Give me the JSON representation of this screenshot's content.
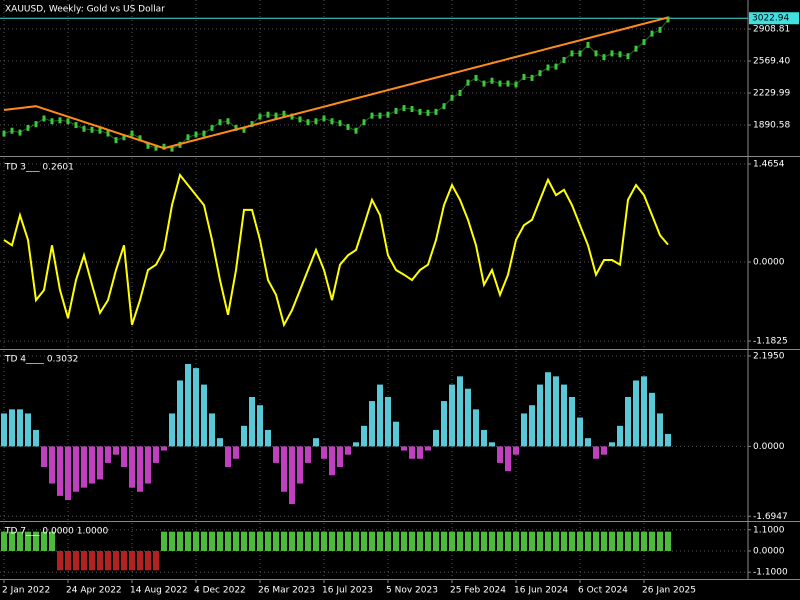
{
  "chart_data": [
    {
      "type": "line",
      "title": "XAUUSD, Weekly:  Gold vs US Dollar",
      "ylim": [
        1572.4,
        3216.4
      ],
      "yticks": [
        2908.81,
        {
          "value": 2569.4,
          "label": "2569.40"
        },
        2229.99,
        1890.58
      ],
      "grid": true,
      "last_price": 3022.94,
      "last_price_color": "#40e0e0",
      "series": [
        {
          "color": "#3cc83c",
          "marker": true,
          "values": [
            1800,
            1830,
            1810,
            1860,
            1900,
            1960,
            1930,
            1940,
            1930,
            1890,
            1850,
            1840,
            1830,
            1800,
            1730,
            1760,
            1800,
            1750,
            1670,
            1650,
            1660,
            1640,
            1680,
            1760,
            1790,
            1800,
            1860,
            1920,
            1930,
            1860,
            1840,
            1900,
            1980,
            2000,
            1990,
            2010,
            1980,
            1950,
            1920,
            1930,
            1960,
            1930,
            1910,
            1870,
            1830,
            1920,
            1990,
            1990,
            2000,
            2040,
            2070,
            2060,
            2030,
            2020,
            2030,
            2090,
            2180,
            2230,
            2340,
            2390,
            2330,
            2360,
            2330,
            2330,
            2320,
            2400,
            2390,
            2440,
            2500,
            2510,
            2580,
            2650,
            2650,
            2740,
            2650,
            2610,
            2650,
            2640,
            2620,
            2700,
            2770,
            2860,
            2900,
            3010
          ]
        },
        {
          "color": "#ff8c1a",
          "marker": false,
          "values": [
            2050,
            2060,
            2070,
            2080,
            2090,
            2062,
            2034,
            2007,
            1979,
            1951,
            1923,
            1895,
            1868,
            1840,
            1812,
            1784,
            1756,
            1729,
            1701,
            1673,
            1645,
            1667,
            1689,
            1711,
            1733,
            1755,
            1777,
            1799,
            1821,
            1843,
            1865,
            1887,
            1909,
            1931,
            1953,
            1975,
            1997,
            2019,
            2041,
            2063,
            2085,
            2107,
            2129,
            2151,
            2173,
            2195,
            2217,
            2239,
            2261,
            2283,
            2305,
            2327,
            2349,
            2371,
            2393,
            2415,
            2437,
            2459,
            2481,
            2503,
            2525,
            2547,
            2569,
            2591,
            2613,
            2635,
            2657,
            2679,
            2701,
            2723,
            2745,
            2767,
            2789,
            2811,
            2833,
            2855,
            2877,
            2899,
            2921,
            2943,
            2965,
            2987,
            3009,
            3031
          ]
        }
      ]
    },
    {
      "type": "line",
      "title": "TD 3___ 0.2601",
      "ylim": [
        -1.286,
        1.555
      ],
      "yticks": [
        1.4654,
        {
          "value": 0,
          "label": "0.0000"
        },
        -1.1825
      ],
      "grid": true,
      "series": [
        {
          "color": "#ffff00",
          "marker": false,
          "values": [
            0.33,
            0.25,
            0.7,
            0.33,
            -0.57,
            -0.42,
            0.25,
            -0.42,
            -0.84,
            -0.27,
            0.1,
            -0.34,
            -0.76,
            -0.57,
            -0.12,
            0.25,
            -0.94,
            -0.57,
            -0.12,
            -0.04,
            0.18,
            0.85,
            1.3,
            1.15,
            1.0,
            0.85,
            0.33,
            -0.27,
            -0.79,
            -0.12,
            0.78,
            0.78,
            0.33,
            -0.27,
            -0.49,
            -0.94,
            -0.72,
            -0.42,
            -0.12,
            0.18,
            -0.12,
            -0.57,
            -0.04,
            0.1,
            0.18,
            0.55,
            0.93,
            0.7,
            0.1,
            -0.12,
            -0.19,
            -0.27,
            -0.12,
            -0.04,
            0.33,
            0.85,
            1.15,
            0.93,
            0.63,
            0.25,
            -0.34,
            -0.12,
            -0.49,
            -0.19,
            0.33,
            0.55,
            0.63,
            0.93,
            1.23,
            1.0,
            1.08,
            0.85,
            0.55,
            0.25,
            -0.19,
            0.03,
            0.03,
            -0.04,
            0.93,
            1.15,
            1.0,
            0.7,
            0.4,
            0.2601
          ]
        }
      ]
    },
    {
      "type": "bar",
      "title": "TD 4____ 0.3032",
      "ylim": [
        -1.785,
        2.315
      ],
      "yticks": [
        {
          "value": 2.195,
          "label": "2.1950"
        },
        {
          "value": 0,
          "label": "0.0000"
        },
        -1.6947
      ],
      "grid": true,
      "positive_color": "#5bc8d8",
      "negative_color": "#c040c0",
      "values": [
        0.8,
        0.9,
        0.9,
        0.8,
        0.4,
        -0.5,
        -0.9,
        -1.2,
        -1.3,
        -1.1,
        -1.0,
        -0.9,
        -0.8,
        -0.4,
        -0.2,
        -0.5,
        -1.0,
        -1.1,
        -0.9,
        -0.4,
        -0.1,
        0.8,
        1.6,
        2.0,
        1.9,
        1.5,
        0.8,
        0.2,
        -0.5,
        -0.3,
        0.5,
        1.2,
        1.0,
        0.4,
        -0.4,
        -1.1,
        -1.4,
        -0.9,
        -0.4,
        0.2,
        -0.3,
        -0.7,
        -0.5,
        -0.2,
        0.1,
        0.5,
        1.1,
        1.5,
        1.2,
        0.6,
        -0.1,
        -0.3,
        -0.3,
        -0.1,
        0.4,
        1.1,
        1.5,
        1.7,
        1.4,
        0.9,
        0.4,
        0.1,
        -0.4,
        -0.6,
        -0.2,
        0.8,
        1.0,
        1.5,
        1.8,
        1.7,
        1.5,
        1.2,
        0.7,
        0.2,
        -0.3,
        -0.2,
        0.1,
        0.5,
        1.2,
        1.6,
        1.7,
        1.3,
        0.8,
        0.3032
      ]
    },
    {
      "type": "bar",
      "title": "TD 7___ 0.0000 1.0000",
      "ylim": [
        -1.4,
        1.45
      ],
      "yticks": [
        {
          "value": 1.1,
          "label": "1.1000"
        },
        {
          "value": 0,
          "label": "0.0000"
        },
        {
          "value": -1.1,
          "label": "-1.1000"
        }
      ],
      "grid": true,
      "positive_color": "#4cbb3c",
      "negative_color": "#b22222",
      "categories": [
        "2 Jan 2022",
        null,
        null,
        null,
        null,
        null,
        null,
        null,
        "24 Apr 2022",
        null,
        null,
        null,
        null,
        null,
        null,
        null,
        "14 Aug 2022",
        null,
        null,
        null,
        null,
        null,
        null,
        null,
        "4 Dec 2022",
        null,
        null,
        null,
        null,
        null,
        null,
        null,
        "26 Mar 2023",
        null,
        null,
        null,
        null,
        null,
        null,
        null,
        "16 Jul 2023",
        null,
        null,
        null,
        null,
        null,
        null,
        null,
        "5 Nov 2023",
        null,
        null,
        null,
        null,
        null,
        null,
        null,
        "25 Feb 2024",
        null,
        null,
        null,
        null,
        null,
        null,
        null,
        "16 Jun 2024",
        null,
        null,
        null,
        null,
        null,
        null,
        null,
        "6 Oct 2024",
        null,
        null,
        null,
        null,
        null,
        null,
        null,
        "26 Jan 2025",
        null,
        null,
        null
      ],
      "values": [
        1,
        1,
        1,
        1,
        1,
        1,
        1,
        -1,
        -1,
        -1,
        -1,
        -1,
        -1,
        -1,
        -1,
        -1,
        -1,
        -1,
        -1,
        -1,
        1,
        1,
        1,
        1,
        1,
        1,
        1,
        1,
        1,
        1,
        1,
        1,
        1,
        1,
        1,
        1,
        1,
        1,
        1,
        1,
        1,
        1,
        1,
        1,
        1,
        1,
        1,
        1,
        1,
        1,
        1,
        1,
        1,
        1,
        1,
        1,
        1,
        1,
        1,
        1,
        1,
        1,
        1,
        1,
        1,
        1,
        1,
        1,
        1,
        1,
        1,
        1,
        1,
        1,
        1,
        1,
        1,
        1,
        1,
        1,
        1,
        1,
        1,
        1
      ]
    }
  ]
}
